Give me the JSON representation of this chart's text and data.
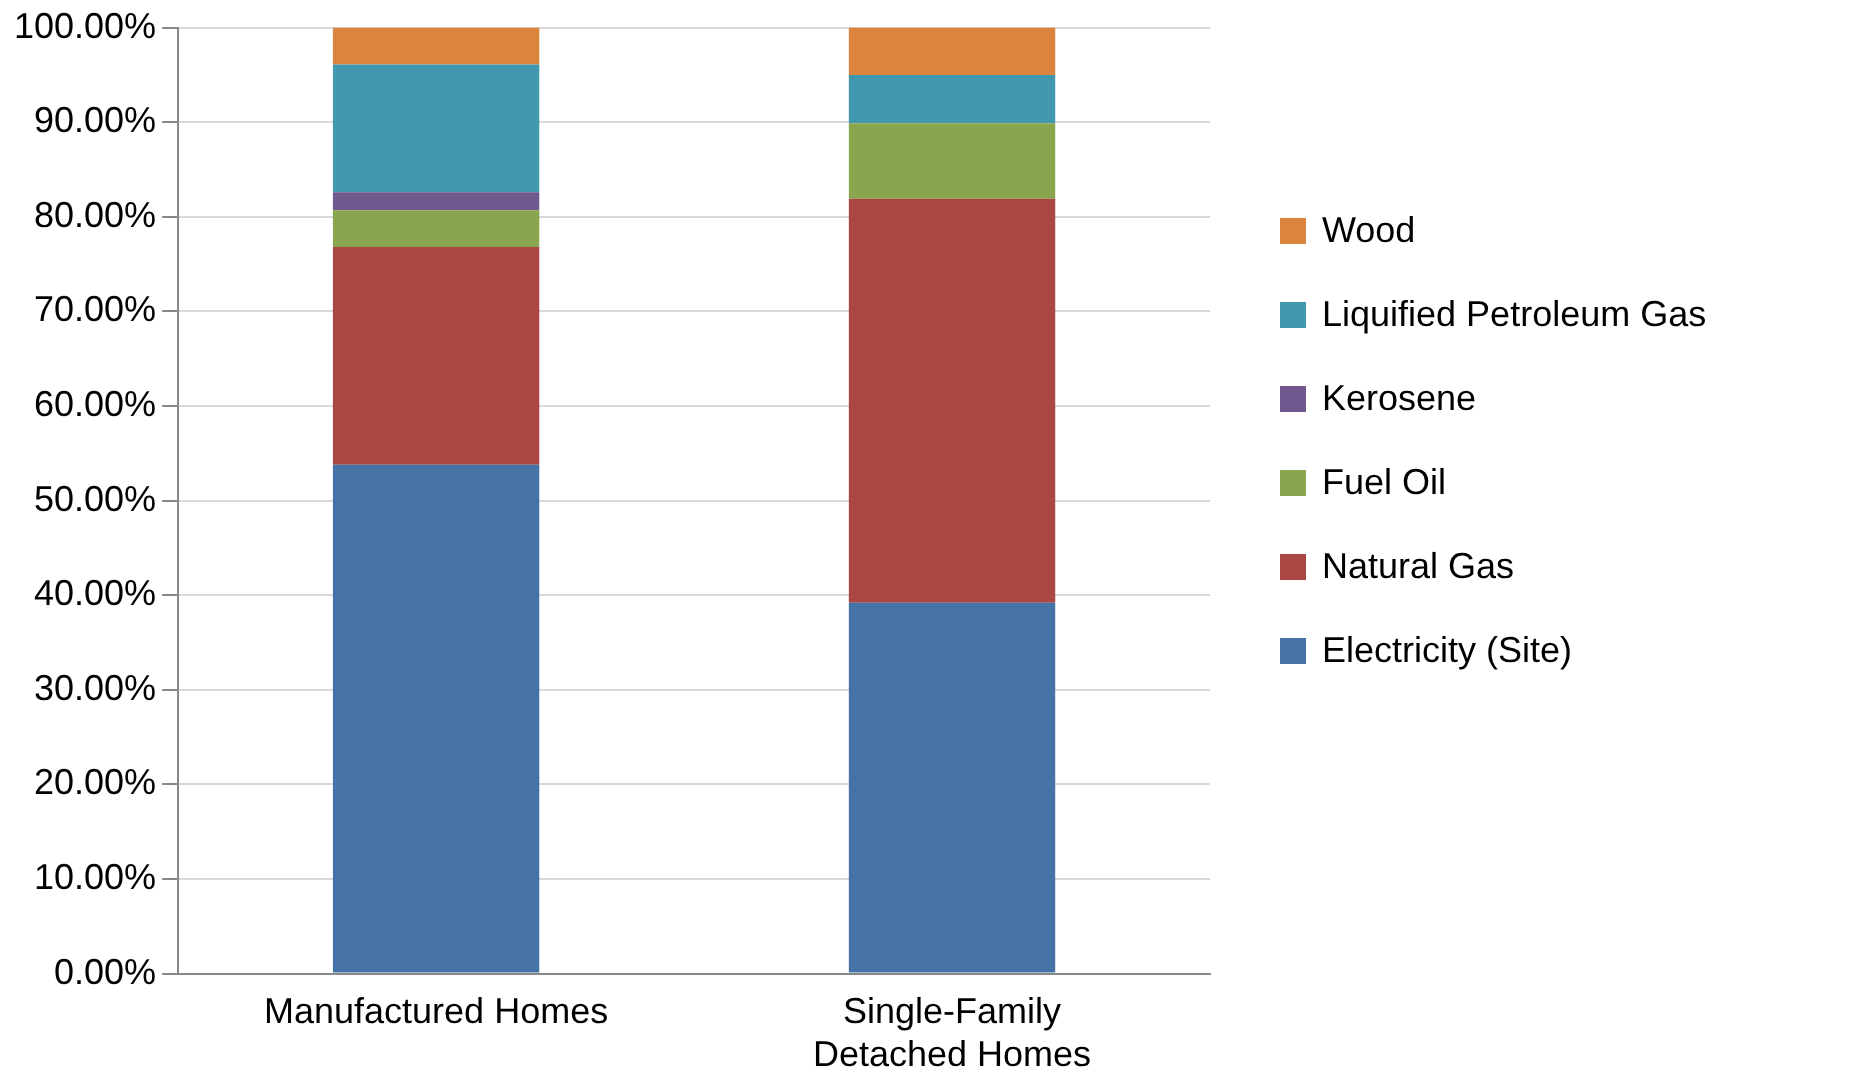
{
  "chart_data": {
    "type": "bar",
    "stacked": true,
    "categories": [
      "Manufactured Homes",
      "Single-Family Detached Homes"
    ],
    "series": [
      {
        "name": "Electricity (Site)",
        "color": "#4572a7",
        "values": [
          53.8,
          39.2
        ]
      },
      {
        "name": "Natural Gas",
        "color": "#aa4643",
        "values": [
          23.0,
          42.7
        ]
      },
      {
        "name": "Fuel Oil",
        "color": "#89a54e",
        "values": [
          3.9,
          8.0
        ]
      },
      {
        "name": "Kerosene",
        "color": "#71588f",
        "values": [
          1.9,
          0
        ]
      },
      {
        "name": "Liquified Petroleum Gas",
        "color": "#4198af",
        "values": [
          13.5,
          5.1
        ]
      },
      {
        "name": "Wood",
        "color": "#db843d",
        "values": [
          3.9,
          5.0
        ]
      }
    ],
    "ylim": [
      0,
      100
    ],
    "yticks": [
      {
        "value": 0,
        "label": "0.00%"
      },
      {
        "value": 10,
        "label": "10.00%"
      },
      {
        "value": 20,
        "label": "20.00%"
      },
      {
        "value": 30,
        "label": "30.00%"
      },
      {
        "value": 40,
        "label": "40.00%"
      },
      {
        "value": 50,
        "label": "50.00%"
      },
      {
        "value": 60,
        "label": "60.00%"
      },
      {
        "value": 70,
        "label": "70.00%"
      },
      {
        "value": 80,
        "label": "80.00%"
      },
      {
        "value": 90,
        "label": "90.00%"
      },
      {
        "value": 100,
        "label": "100.00%"
      }
    ],
    "grid": "y",
    "legend": "right"
  }
}
